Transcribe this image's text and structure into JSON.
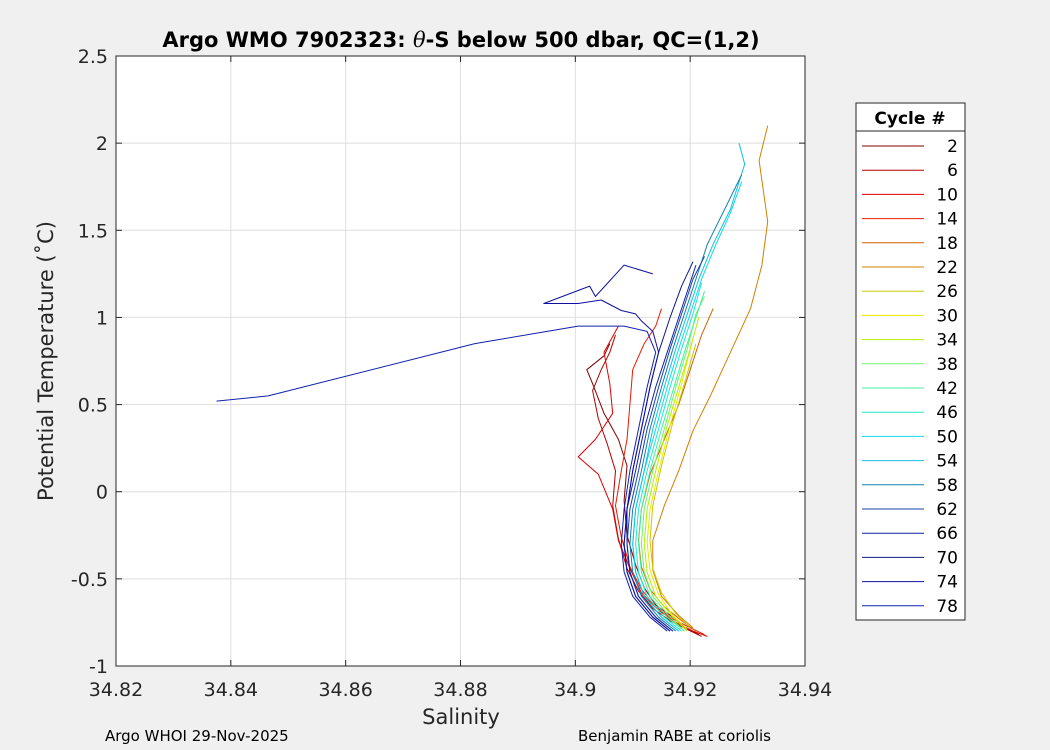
{
  "chart_data": {
    "type": "line",
    "title_prefix": "Argo WMO 7902323: ",
    "title_symbol": "θ",
    "title_suffix": "-S below 500 dbar,  QC=(1,2)",
    "xlabel": "Salinity",
    "ylabel": "Potential Temperature (˚C)",
    "xlim": [
      34.82,
      34.94
    ],
    "ylim": [
      -1,
      2.5
    ],
    "xticks": [
      34.82,
      34.84,
      34.86,
      34.88,
      34.9,
      34.92,
      34.94
    ],
    "xtick_labels": [
      "34.82",
      "34.84",
      "34.86",
      "34.88",
      "34.9",
      "34.92",
      "34.94"
    ],
    "yticks": [
      -1,
      -0.5,
      0,
      0.5,
      1,
      1.5,
      2,
      2.5
    ],
    "ytick_labels": [
      "-1",
      "-0.5",
      "0",
      "0.5",
      "1",
      "1.5",
      "2",
      "2.5"
    ],
    "grid": true,
    "legend_title": "Cycle #",
    "legend_placement": "outside-right",
    "legend_entries": [
      "2",
      "6",
      "10",
      "14",
      "18",
      "22",
      "26",
      "30",
      "34",
      "38",
      "42",
      "46",
      "50",
      "54",
      "58",
      "62",
      "66",
      "70",
      "74",
      "78"
    ],
    "legend_colors": [
      "#800000",
      "#b00000",
      "#e00000",
      "#e81a00",
      "#d06000",
      "#d08000",
      "#c8c800",
      "#e8e800",
      "#b0f000",
      "#70f070",
      "#40f0a0",
      "#20e8c8",
      "#10d8e8",
      "#10c0e0",
      "#1080b0",
      "#1840b0",
      "#1020a0",
      "#101880",
      "#1010a0",
      "#1020b0"
    ],
    "series": [
      {
        "name": "2",
        "color": "#800000",
        "s": [
          34.9215,
          34.919,
          34.917,
          34.914,
          34.912,
          34.9105,
          34.909,
          34.9085,
          34.909,
          34.9075,
          34.905,
          34.903,
          34.902,
          34.905,
          34.906
        ],
        "t": [
          -0.82,
          -0.78,
          -0.72,
          -0.65,
          -0.55,
          -0.42,
          -0.25,
          -0.05,
          0.15,
          0.3,
          0.45,
          0.62,
          0.7,
          0.78,
          0.85
        ]
      },
      {
        "name": "6",
        "color": "#b00000",
        "s": [
          34.922,
          34.9195,
          34.9165,
          34.9135,
          34.911,
          34.909,
          34.9075,
          34.9065,
          34.907,
          34.9055,
          34.904,
          34.903,
          34.9045,
          34.906,
          34.907
        ],
        "t": [
          -0.83,
          -0.79,
          -0.74,
          -0.67,
          -0.57,
          -0.44,
          -0.27,
          -0.08,
          0.12,
          0.28,
          0.42,
          0.58,
          0.7,
          0.8,
          0.9
        ]
      },
      {
        "name": "10",
        "color": "#e00000",
        "s": [
          34.923,
          34.9205,
          34.9175,
          34.9145,
          34.9115,
          34.9095,
          34.9075,
          34.9065,
          34.904,
          34.9005,
          34.9035,
          34.9065,
          34.906,
          34.905,
          34.9075
        ],
        "t": [
          -0.83,
          -0.8,
          -0.75,
          -0.68,
          -0.58,
          -0.44,
          -0.28,
          -0.1,
          0.1,
          0.2,
          0.3,
          0.45,
          0.62,
          0.8,
          0.95
        ]
      },
      {
        "name": "14",
        "color": "#e81a00",
        "s": [
          34.9225,
          34.92,
          34.917,
          34.914,
          34.9115,
          34.9095,
          34.908,
          34.907,
          34.908,
          34.909,
          34.9095,
          34.91,
          34.912,
          34.914,
          34.915
        ],
        "t": [
          -0.82,
          -0.78,
          -0.73,
          -0.66,
          -0.56,
          -0.43,
          -0.26,
          -0.08,
          0.12,
          0.3,
          0.5,
          0.7,
          0.85,
          0.95,
          1.05
        ]
      },
      {
        "name": "18",
        "color": "#d06000",
        "s": [
          34.921,
          34.9185,
          34.9155,
          34.913,
          34.9115,
          34.911,
          34.9115,
          34.913,
          34.9155,
          34.918,
          34.92,
          34.922,
          34.924
        ],
        "t": [
          -0.8,
          -0.74,
          -0.66,
          -0.56,
          -0.43,
          -0.28,
          -0.1,
          0.1,
          0.3,
          0.5,
          0.7,
          0.9,
          1.05
        ]
      },
      {
        "name": "22",
        "color": "#d08000",
        "s": [
          34.9205,
          34.918,
          34.915,
          34.9135,
          34.9135,
          34.9155,
          34.918,
          34.9205,
          34.9235,
          34.927,
          34.9305,
          34.9325,
          34.9335,
          34.932,
          34.9335
        ],
        "t": [
          -0.78,
          -0.71,
          -0.6,
          -0.45,
          -0.28,
          -0.08,
          0.12,
          0.35,
          0.55,
          0.8,
          1.05,
          1.3,
          1.55,
          1.9,
          2.1
        ]
      },
      {
        "name": "26",
        "color": "#c8c800",
        "s": [
          34.92,
          34.9175,
          34.915,
          34.9135,
          34.913,
          34.9135,
          34.915,
          34.917,
          34.919,
          34.921
        ],
        "t": [
          -0.78,
          -0.7,
          -0.58,
          -0.44,
          -0.28,
          -0.08,
          0.15,
          0.4,
          0.62,
          0.85
        ]
      },
      {
        "name": "30",
        "color": "#e8e800",
        "s": [
          34.9195,
          34.917,
          34.9145,
          34.913,
          34.9125,
          34.913,
          34.9145,
          34.9165,
          34.9185,
          34.9205
        ],
        "t": [
          -0.79,
          -0.71,
          -0.59,
          -0.45,
          -0.29,
          -0.1,
          0.12,
          0.38,
          0.62,
          0.88
        ]
      },
      {
        "name": "34",
        "color": "#b0f000",
        "s": [
          34.9195,
          34.917,
          34.914,
          34.9125,
          34.912,
          34.9125,
          34.914,
          34.916,
          34.918,
          34.92,
          34.9215
        ],
        "t": [
          -0.8,
          -0.72,
          -0.6,
          -0.46,
          -0.3,
          -0.1,
          0.12,
          0.38,
          0.6,
          0.82,
          1.0
        ]
      },
      {
        "name": "38",
        "color": "#70f070",
        "s": [
          34.919,
          34.9165,
          34.9135,
          34.912,
          34.9115,
          34.912,
          34.9135,
          34.9155,
          34.9175,
          34.9195,
          34.921,
          34.9225
        ],
        "t": [
          -0.8,
          -0.72,
          -0.6,
          -0.46,
          -0.3,
          -0.1,
          0.12,
          0.36,
          0.6,
          0.82,
          1.02,
          1.12
        ]
      },
      {
        "name": "42",
        "color": "#40f0a0",
        "s": [
          34.919,
          34.916,
          34.913,
          34.9115,
          34.911,
          34.9115,
          34.913,
          34.915,
          34.917,
          34.919,
          34.921,
          34.9225
        ],
        "t": [
          -0.8,
          -0.72,
          -0.6,
          -0.46,
          -0.3,
          -0.1,
          0.12,
          0.36,
          0.58,
          0.8,
          1.0,
          1.15
        ]
      },
      {
        "name": "46",
        "color": "#20e8c8",
        "s": [
          34.9185,
          34.9155,
          34.9125,
          34.911,
          34.9105,
          34.911,
          34.9125,
          34.9145,
          34.9165,
          34.9185,
          34.9205,
          34.922
        ],
        "t": [
          -0.8,
          -0.72,
          -0.6,
          -0.46,
          -0.3,
          -0.1,
          0.12,
          0.36,
          0.6,
          0.82,
          1.02,
          1.2
        ]
      },
      {
        "name": "50",
        "color": "#10d8e8",
        "s": [
          34.918,
          34.915,
          34.912,
          34.9105,
          34.91,
          34.9105,
          34.912,
          34.914,
          34.916,
          34.918,
          34.92,
          34.922,
          34.9245,
          34.927,
          34.929
        ],
        "t": [
          -0.8,
          -0.72,
          -0.6,
          -0.46,
          -0.3,
          -0.1,
          0.12,
          0.36,
          0.6,
          0.82,
          1.02,
          1.22,
          1.42,
          1.6,
          1.78
        ]
      },
      {
        "name": "54",
        "color": "#10c0e0",
        "s": [
          34.918,
          34.915,
          34.912,
          34.9105,
          34.91,
          34.9105,
          34.912,
          34.9135,
          34.9155,
          34.9175,
          34.9195,
          34.9215,
          34.924,
          34.927,
          34.9295,
          34.9285
        ],
        "t": [
          -0.8,
          -0.72,
          -0.6,
          -0.46,
          -0.3,
          -0.1,
          0.12,
          0.36,
          0.6,
          0.82,
          1.02,
          1.22,
          1.42,
          1.62,
          1.88,
          2.0
        ]
      },
      {
        "name": "58",
        "color": "#1080b0",
        "s": [
          34.9175,
          34.9145,
          34.9115,
          34.91,
          34.9095,
          34.91,
          34.9115,
          34.913,
          34.915,
          34.917,
          34.919,
          34.921,
          34.923,
          34.926,
          34.929
        ],
        "t": [
          -0.8,
          -0.72,
          -0.6,
          -0.46,
          -0.3,
          -0.1,
          0.12,
          0.36,
          0.6,
          0.82,
          1.02,
          1.22,
          1.42,
          1.62,
          1.82
        ]
      },
      {
        "name": "62",
        "color": "#1840b0",
        "s": [
          34.917,
          34.914,
          34.911,
          34.9095,
          34.909,
          34.9095,
          34.911,
          34.9125,
          34.9145,
          34.9165,
          34.9185,
          34.9205,
          34.9225
        ],
        "t": [
          -0.8,
          -0.72,
          -0.6,
          -0.46,
          -0.3,
          -0.1,
          0.12,
          0.36,
          0.6,
          0.82,
          1.02,
          1.22,
          1.35
        ]
      },
      {
        "name": "66",
        "color": "#1020a0",
        "s": [
          34.917,
          34.914,
          34.911,
          34.9095,
          34.909,
          34.909,
          34.9105,
          34.912,
          34.914,
          34.916,
          34.918,
          34.92,
          34.921
        ],
        "t": [
          -0.8,
          -0.72,
          -0.6,
          -0.46,
          -0.3,
          -0.1,
          0.12,
          0.36,
          0.6,
          0.8,
          1.0,
          1.2,
          1.3
        ]
      },
      {
        "name": "70",
        "color": "#101880",
        "s": [
          34.9165,
          34.9135,
          34.9105,
          34.909,
          34.9085,
          34.909,
          34.91,
          34.9115,
          34.913,
          34.9145,
          34.9165,
          34.9185,
          34.9205
        ],
        "t": [
          -0.8,
          -0.72,
          -0.6,
          -0.46,
          -0.3,
          -0.1,
          0.12,
          0.36,
          0.6,
          0.8,
          1.0,
          1.18,
          1.32
        ]
      },
      {
        "name": "74",
        "color": "#1010a0",
        "s": [
          34.9165,
          34.9135,
          34.9105,
          34.909,
          34.9085,
          34.909,
          34.91,
          34.9115,
          34.913,
          34.9145,
          34.9135,
          34.9115,
          34.9105,
          34.908,
          34.9045,
          34.9005,
          34.8945,
          34.9025,
          34.9035,
          34.9085,
          34.9135
        ],
        "t": [
          -0.8,
          -0.72,
          -0.6,
          -0.46,
          -0.3,
          -0.1,
          0.12,
          0.36,
          0.6,
          0.8,
          0.92,
          0.98,
          1.02,
          1.04,
          1.1,
          1.08,
          1.08,
          1.18,
          1.12,
          1.3,
          1.25
        ]
      },
      {
        "name": "78",
        "color": "#1020b0",
        "s": [
          34.916,
          34.913,
          34.91,
          34.9085,
          34.908,
          34.9085,
          34.9095,
          34.911,
          34.9125,
          34.914,
          34.9125,
          34.9085,
          34.9005,
          34.8825,
          34.8465,
          34.8375
        ],
        "t": [
          -0.8,
          -0.72,
          -0.6,
          -0.46,
          -0.3,
          -0.1,
          0.12,
          0.36,
          0.6,
          0.8,
          0.92,
          0.95,
          0.95,
          0.85,
          0.55,
          0.52
        ]
      }
    ]
  },
  "footer": {
    "left": "Argo WHOI 29-Nov-2025",
    "right": "Benjamin RABE at coriolis"
  }
}
